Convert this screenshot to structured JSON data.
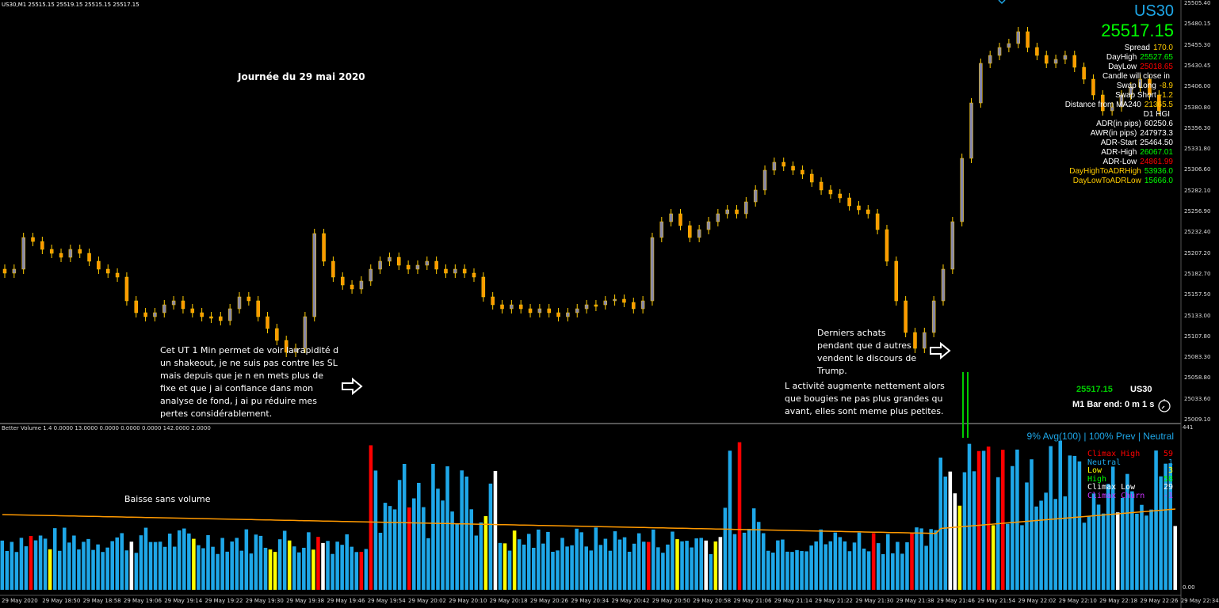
{
  "header": {
    "symbol_line": "US30,M1  25515.15 25519.15 25515.15 25517.15"
  },
  "panel": {
    "symbol": "US30",
    "price": "25517.15",
    "rows": [
      {
        "label": "Spread",
        "value": "170.0",
        "color": "#ffcc00"
      },
      {
        "label": "DayHigh",
        "value": "25527.65",
        "color": "#00ff00"
      },
      {
        "label": "DayLow",
        "value": "25018.65",
        "color": "#ff0000"
      },
      {
        "label": "Candle will close in",
        "value": "",
        "color": "#ffffff"
      },
      {
        "label": "Swap Long",
        "value": "-8.9",
        "color": "#ffcc00"
      },
      {
        "label": "Swap Short",
        "value": "-1.2",
        "color": "#ffcc00"
      },
      {
        "label": "Distance from MA240",
        "value": "21365.5",
        "color": "#ffcc00"
      },
      {
        "label": "D1 HGI",
        "value": "",
        "color": "#ffffff"
      },
      {
        "label": "ADR(in pips)",
        "value": "60250.6",
        "color": "#ffffff"
      },
      {
        "label": "AWR(in pips)",
        "value": "247973.3",
        "color": "#ffffff"
      },
      {
        "label": "ADR-Start",
        "value": "25464.50",
        "color": "#ffffff"
      },
      {
        "label": "ADR-High",
        "value": "26067.01",
        "color": "#00ff00"
      },
      {
        "label": "ADR-Low",
        "value": "24861.99",
        "color": "#ff0000"
      },
      {
        "label": "DayHighToADRHigh",
        "value": "53936.0",
        "color": "#00ff00",
        "label_color": "#ffcc00"
      },
      {
        "label": "DayLowToADRLow",
        "value": "15666.0",
        "color": "#00ff00",
        "label_color": "#ffcc00"
      }
    ]
  },
  "annotations": {
    "title": "Journée du 29 mai 2020",
    "note_left": "Cet UT 1 Min permet de voir la rapidité d un shakeout, je ne suis pas contre les SL mais depuis que je n en mets plus de fixe et que j ai confiance dans mon analyse de fond, j ai pu réduire mes pertes considérablement.",
    "note_trump": "Derniers achats pendant que d autres vendent le discours de Trump.",
    "note_activity": "L activité augmente nettement alors que bougies ne pas plus grandes qu avant, elles sont meme plus petites.",
    "note_volume": "Baisse sans volume"
  },
  "bar_end": {
    "price": "25517.15",
    "symbol": "US30",
    "label": "M1 Bar end: 0 m 1 s"
  },
  "volume": {
    "header": "Better Volume 1.4 0.0000 13.0000 0.0000 0.0000 0.0000 142.0000 2.0000",
    "stats": "9% Avg(100) | 100% Prev | Neutral",
    "legend": [
      {
        "label": "Climax High",
        "value": "59",
        "color": "#ff0000"
      },
      {
        "label": "Neutral",
        "value": "1",
        "color": "#1ea7e8"
      },
      {
        "label": "Low",
        "value": "3",
        "color": "#ffff00"
      },
      {
        "label": "High",
        "value": "58",
        "color": "#00ff00"
      },
      {
        "label": "Climax Low",
        "value": "29",
        "color": "#ffffff"
      },
      {
        "label": "Climax Churn",
        "value": "-1",
        "color": "#cc33ff"
      }
    ],
    "axis_top": "441",
    "axis_bottom": "0.00"
  },
  "price_axis": [
    "25505.40",
    "25480.15",
    "25455.30",
    "25430.45",
    "25406.00",
    "25380.80",
    "25356.30",
    "25331.80",
    "25306.60",
    "25282.10",
    "25256.90",
    "25232.40",
    "25207.20",
    "25182.70",
    "25157.50",
    "25133.00",
    "25107.80",
    "25083.30",
    "25058.80",
    "25033.60",
    "25009.10"
  ],
  "time_axis": [
    "29 May 2020",
    "29 May 18:50",
    "29 May 18:58",
    "29 May 19:06",
    "29 May 19:14",
    "29 May 19:22",
    "29 May 19:30",
    "29 May 19:38",
    "29 May 19:46",
    "29 May 19:54",
    "29 May 20:02",
    "29 May 20:10",
    "29 May 20:18",
    "29 May 20:26",
    "29 May 20:34",
    "29 May 20:42",
    "29 May 20:50",
    "29 May 20:58",
    "29 May 21:06",
    "29 May 21:14",
    "29 May 21:22",
    "29 May 21:30",
    "29 May 21:38",
    "29 May 21:46",
    "29 May 21:54",
    "29 May 22:02",
    "29 May 22:10",
    "29 May 22:18",
    "29 May 22:26",
    "29 May 22:34"
  ],
  "colors": {
    "candle_up": "#8888aa",
    "candle_down": "#ff9900",
    "wick": "#ffcc00",
    "ma": "#ff9900",
    "neutral": "#1ea7e8",
    "title": "#ffffff"
  }
}
